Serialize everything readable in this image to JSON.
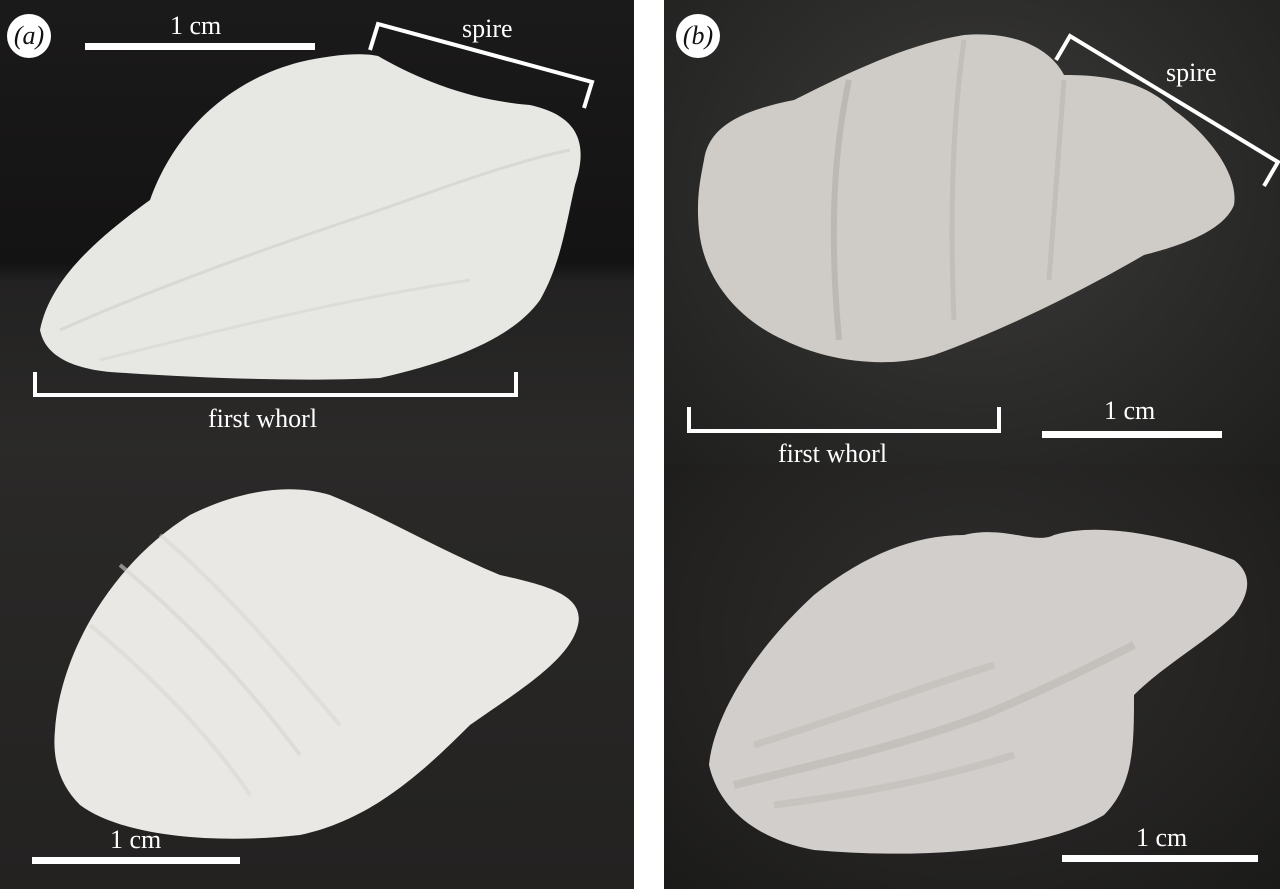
{
  "panels": {
    "a": {
      "label": "(a)"
    },
    "b": {
      "label": "(b)"
    }
  },
  "labels": {
    "scale_1cm": "1 cm",
    "spire": "spire",
    "first_whorl": "first whorl"
  },
  "colors": {
    "background_dark": "#1b1a1a",
    "shell_white": "#e9e8e4",
    "shell_grey": "#cfcbc6",
    "annotation": "#ffffff"
  }
}
